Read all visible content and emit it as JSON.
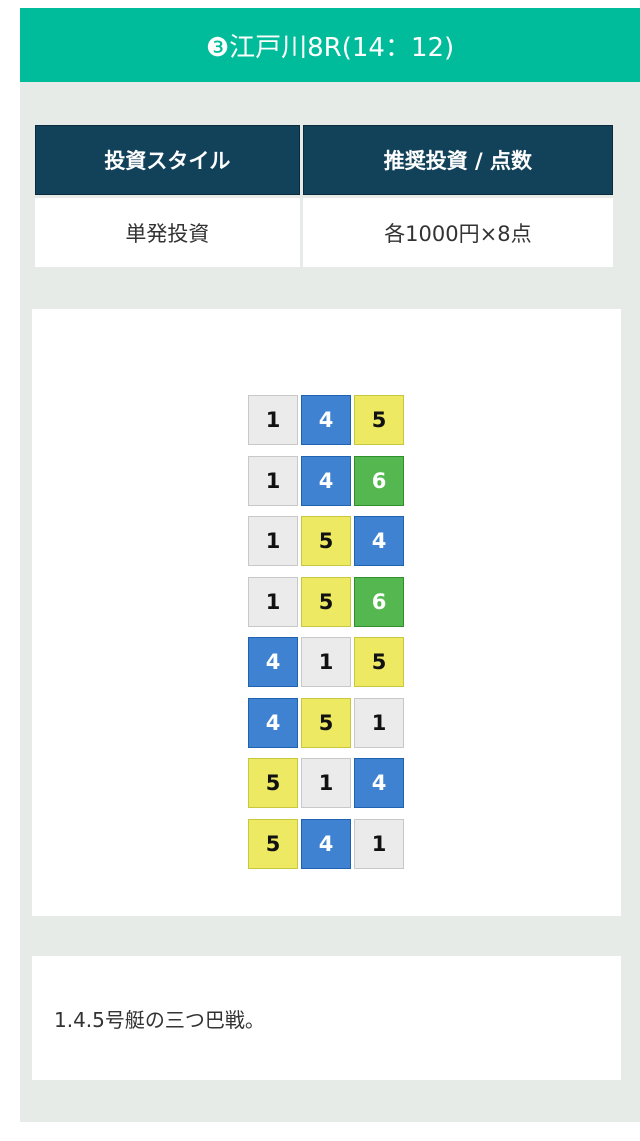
{
  "title": "❸江戸川8R(14：12)",
  "table": {
    "headers": [
      "投資スタイル",
      "推奨投資 / 点数"
    ],
    "values": [
      "単発投資",
      "各1000円×8点"
    ]
  },
  "boat_colors": {
    "1": {
      "bg": "#ebebeb",
      "border": "#c8c8c8",
      "fg": "#111"
    },
    "4": {
      "bg": "#3f82d1",
      "border": "#1f62b0",
      "fg": "#fff"
    },
    "5": {
      "bg": "#ede962",
      "border": "#c9c640",
      "fg": "#111"
    },
    "6": {
      "bg": "#55b74f",
      "border": "#2f8f2c",
      "fg": "#fff"
    }
  },
  "bets": [
    [
      "1",
      "4",
      "5"
    ],
    [
      "1",
      "4",
      "6"
    ],
    [
      "1",
      "5",
      "4"
    ],
    [
      "1",
      "5",
      "6"
    ],
    [
      "4",
      "1",
      "5"
    ],
    [
      "4",
      "5",
      "1"
    ],
    [
      "5",
      "1",
      "4"
    ],
    [
      "5",
      "4",
      "1"
    ]
  ],
  "comment": "1.4.5号艇の三つ巴戦。"
}
